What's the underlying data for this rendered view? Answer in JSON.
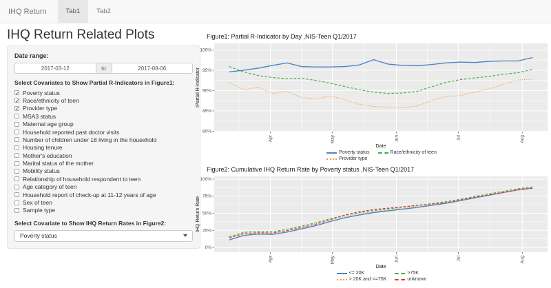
{
  "navbar": {
    "brand": "IHQ Return",
    "tabs": [
      {
        "label": "Tab1",
        "active": true
      },
      {
        "label": "Tab2",
        "active": false
      }
    ]
  },
  "page_title": "IHQ Return Related Plots",
  "sidebar": {
    "date_range": {
      "label": "Date range:",
      "start": "2017-03-12",
      "separator": "to",
      "end": "2017-08-06"
    },
    "covariates": {
      "label": "Select Covariates to Show Partial R-Indicators in Figure1:",
      "items": [
        {
          "label": "Poverty status",
          "checked": true
        },
        {
          "label": "Race/ethnicity of teen",
          "checked": true
        },
        {
          "label": "Provider type",
          "checked": true
        },
        {
          "label": "MSA3 status",
          "checked": false
        },
        {
          "label": "Maternal age group",
          "checked": false
        },
        {
          "label": "Household reported past doctor visits",
          "checked": false
        },
        {
          "label": "Number of children under 18 living in the household",
          "checked": false
        },
        {
          "label": "Housing tenure",
          "checked": false
        },
        {
          "label": "Mother's education",
          "checked": false
        },
        {
          "label": "Marital status of the mother",
          "checked": false
        },
        {
          "label": "Mobility status",
          "checked": false
        },
        {
          "label": "Relationship of household respondent to teen",
          "checked": false
        },
        {
          "label": "Age category of teen",
          "checked": false
        },
        {
          "label": "Household report of check-up at 11-12 years of age",
          "checked": false
        },
        {
          "label": "Sex of teen",
          "checked": false
        },
        {
          "label": "Sample type",
          "checked": false
        }
      ]
    },
    "figure2_select": {
      "label": "Select Covariate to Show IHQ Return Rates in Figure2:",
      "value": "Poverty status"
    }
  },
  "chart_data": [
    {
      "type": "line",
      "title": "Figure1: Partial R-Indicator by Day ,NIS-Teen Q1/2017",
      "xlabel": "Date",
      "ylabel": "IPartial R-Indicator",
      "ylim": [
        79.9,
        101.6
      ],
      "grid": true,
      "legend_position": "bottom",
      "panel_color": "#ebebeb",
      "yticks": [
        {
          "v": 80,
          "label": "80%"
        },
        {
          "v": 85,
          "label": "85%"
        },
        {
          "v": 90,
          "label": "90%"
        },
        {
          "v": 95,
          "label": "95%"
        },
        {
          "v": 100,
          "label": "100%"
        }
      ],
      "xticks": [
        {
          "t": 0.136,
          "label": "Apr"
        },
        {
          "t": 0.34,
          "label": "May"
        },
        {
          "t": 0.551,
          "label": "Jun"
        },
        {
          "t": 0.755,
          "label": "Jul"
        },
        {
          "t": 0.966,
          "label": "Aug"
        }
      ],
      "series": [
        {
          "name": "Poverty status",
          "color": "#4a86c5",
          "dash": "solid",
          "values": [
            94.6,
            95.0,
            95.5,
            96.2,
            96.8,
            95.9,
            95.8,
            95.8,
            95.9,
            96.3,
            97.6,
            96.5,
            96.2,
            96.1,
            96.4,
            96.8,
            97.0,
            96.9,
            97.2,
            97.3,
            97.3,
            98.1
          ]
        },
        {
          "name": "Race/ethnicity of teen",
          "color": "#3eae49",
          "dash": "dashed",
          "values": [
            95.9,
            94.6,
            93.7,
            93.2,
            92.9,
            93.0,
            92.5,
            91.8,
            91.0,
            90.2,
            89.6,
            89.3,
            89.4,
            89.8,
            90.9,
            92.0,
            92.7,
            93.1,
            93.5,
            94.0,
            94.4,
            95.2
          ]
        },
        {
          "name": "Provider type",
          "color": "#f59b43",
          "dash": "dotted",
          "values": [
            92.0,
            90.2,
            90.8,
            89.3,
            89.8,
            88.3,
            88.0,
            88.6,
            87.8,
            86.6,
            86.1,
            85.9,
            85.8,
            86.2,
            87.5,
            88.5,
            88.8,
            89.6,
            90.4,
            91.6,
            92.6,
            92.8
          ]
        }
      ]
    },
    {
      "type": "line",
      "title": "Figure2: Cumulative IHQ Return Rate by Poverty status ,NIS-Teen Q1/2017",
      "xlabel": "Date",
      "ylabel": "IHQ Return Rate",
      "ylim": [
        -7,
        104
      ],
      "grid": true,
      "legend_position": "bottom",
      "panel_color": "#ebebeb",
      "yticks": [
        {
          "v": 0,
          "label": "0%"
        },
        {
          "v": 25,
          "label": "25%"
        },
        {
          "v": 50,
          "label": "50%"
        },
        {
          "v": 75,
          "label": "75%"
        },
        {
          "v": 100,
          "label": "100%"
        }
      ],
      "xticks": [
        {
          "t": 0.136,
          "label": "Apr"
        },
        {
          "t": 0.34,
          "label": "May"
        },
        {
          "t": 0.551,
          "label": "Jun"
        },
        {
          "t": 0.755,
          "label": "Jul"
        },
        {
          "t": 0.966,
          "label": "Aug"
        }
      ],
      "series": [
        {
          "name": "<= 20K",
          "color": "#4a86c5",
          "dash": "solid",
          "values": [
            11,
            17.5,
            19.5,
            19,
            22.5,
            27,
            32,
            38,
            43.5,
            47.5,
            51,
            53.5,
            56,
            58.5,
            61.5,
            64.5,
            68.5,
            72.5,
            76.5,
            80.5,
            84.5,
            87
          ]
        },
        {
          "name": ">75K",
          "color": "#3eae49",
          "dash": "dashed",
          "values": [
            15.5,
            22,
            23.5,
            23,
            26.5,
            31,
            36,
            42,
            47,
            51,
            54,
            56.5,
            59,
            61.5,
            64,
            67,
            70.5,
            74.5,
            78.5,
            82,
            86,
            88.5
          ]
        },
        {
          "name": "> 20K and <=75K",
          "color": "#f59b43",
          "dash": "dotted",
          "values": [
            14,
            20.5,
            22,
            21.5,
            25,
            29.5,
            34.5,
            40.5,
            45.5,
            49.5,
            52.5,
            55,
            57.5,
            60,
            62.5,
            65.5,
            69,
            73,
            77,
            81,
            85,
            87.5
          ]
        },
        {
          "name": "unknown",
          "color": "#e0393e",
          "dash": "dashed",
          "values": [
            14,
            20,
            21.5,
            21,
            24.5,
            29,
            34,
            40.5,
            47.5,
            52,
            55.5,
            57.5,
            59.5,
            61.5,
            63.5,
            65.5,
            69.5,
            73.5,
            77,
            80.5,
            84,
            86.5
          ]
        }
      ]
    }
  ]
}
